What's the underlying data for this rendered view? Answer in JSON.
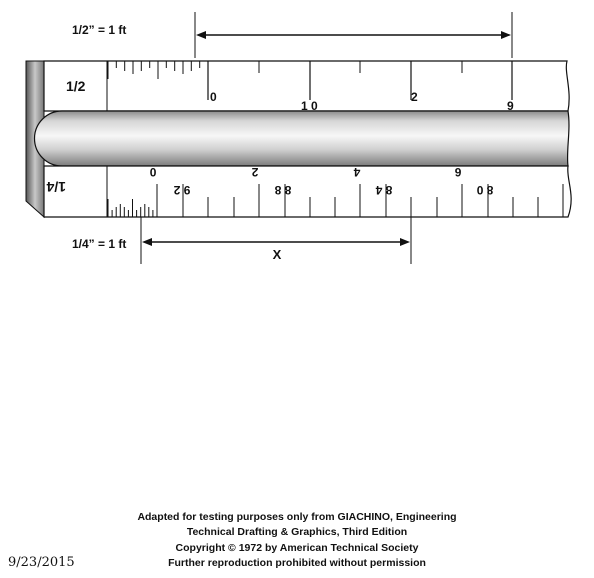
{
  "top_scale": {
    "label": "1/2” = 1 ft",
    "ruler_label": "1/2",
    "numbers": [
      "0",
      "1 0",
      "2",
      "9"
    ]
  },
  "bottom_scale": {
    "label": "1/4” = 1 ft",
    "ruler_label": "1/4",
    "numbers": [
      "0",
      "9 2",
      "2",
      "8 8",
      "4",
      "8 4",
      "6",
      "8 0"
    ],
    "unknown": "X"
  },
  "credits": {
    "line1": "Adapted for testing purposes only from GIACHINO, Engineering",
    "line2": "Technical Drafting & Graphics, Third Edition",
    "line3": "Copyright © 1972 by American Technical Society",
    "line4": "Further reproduction prohibited without permission"
  },
  "date": "9/23/2015",
  "colors": {
    "ink": "#111111",
    "ruler_face": "#ffffff",
    "bar_dark": "#9a9a9a",
    "bar_light": "#f4f4f4"
  }
}
